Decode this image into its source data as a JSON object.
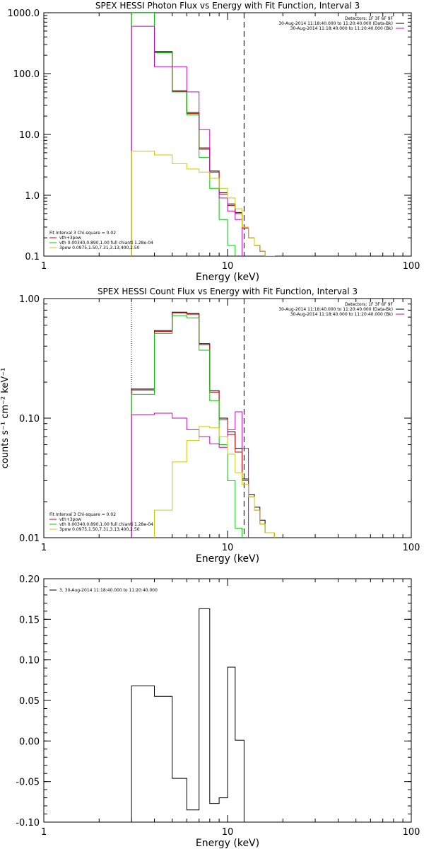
{
  "chart_data": [
    {
      "type": "line",
      "step": true,
      "title": "SPEX HESSI Photon Flux vs Energy with Fit Function, Interval 3",
      "xlabel": "Energy (keV)",
      "ylabel": "",
      "xscale": "log",
      "yscale": "log",
      "xlim": [
        1,
        100
      ],
      "ylim": [
        0.1,
        1000
      ],
      "xticks": [
        1,
        10,
        100
      ],
      "xtick_labels": [
        "1",
        "10",
        "100"
      ],
      "yticks": [
        0.1,
        1,
        10,
        100,
        1000
      ],
      "ytick_labels": [
        "0.1",
        "1.0",
        "10.0",
        "100.0",
        "1000.0"
      ],
      "vlines": [
        {
          "x": 3.0,
          "style": "dotted"
        },
        {
          "x": 12.3,
          "style": "dashed"
        }
      ],
      "legend_right": [
        "Detectors: 1F 3F 6F 9F",
        "30-Aug-2014 11:18:40.000 to 11:20:40.000 (Data-Bk)",
        "30-Aug-2014 11:18:40.000 to 11:20:40.000 (Bk)"
      ],
      "legend_right_colors": [
        "#000000",
        "#000000",
        "#cc00cc"
      ],
      "legend_left": [
        "Fit Interval 3   Chi-square = 0.02",
        "vth+3pow",
        "vth 0.00340,0.890,1.00   full chianti 1.28e-04",
        "3pow 0.0975,1.50,7.31,3.13,400,2.50"
      ],
      "legend_left_colors": [
        "#000000",
        "#cc0000",
        "#00cc00",
        "#cccc00"
      ],
      "edges": [
        3.0,
        4.0,
        5.0,
        6.0,
        7.0,
        8.0,
        9.0,
        10.0,
        11.0,
        12.0,
        13.0,
        14.0,
        15.0,
        16.0,
        18.0
      ],
      "series": [
        {
          "color": "#000000",
          "values": [
            1000,
            230,
            52,
            23,
            6,
            2.5,
            1.1,
            0.72,
            0.52,
            0.3,
            0.2,
            0.15,
            0.12,
            0.1
          ]
        },
        {
          "color": "#cc0000",
          "values": [
            1000,
            225,
            51,
            22,
            5.7,
            2.4,
            1.05,
            0.68,
            0.5,
            0.29,
            0.2,
            0.15,
            0.12,
            0.1
          ]
        },
        {
          "color": "#00cc00",
          "values": [
            1000,
            220,
            50,
            21,
            4.2,
            1.3,
            0.4,
            0.15,
            0.05,
            null,
            null,
            null,
            null,
            null
          ]
        },
        {
          "color": "#cc00cc",
          "values": [
            600,
            130,
            130,
            50,
            12,
            1.9,
            0.9,
            0.55,
            0.4,
            0.01,
            null,
            null,
            null,
            null
          ]
        },
        {
          "color": "#cccc00",
          "values": [
            5.3,
            4.6,
            3.3,
            2.7,
            2.4,
            1.9,
            1.3,
            0.9,
            0.6,
            0.3,
            0.2,
            0.15,
            0.12,
            0.1
          ]
        }
      ]
    },
    {
      "type": "line",
      "step": true,
      "title": "SPEX HESSI Count Flux vs Energy with Fit Function, Interval 3",
      "xlabel": "Energy (keV)",
      "ylabel": "counts s⁻¹ cm⁻² keV⁻¹",
      "xscale": "log",
      "yscale": "log",
      "xlim": [
        1,
        100
      ],
      "ylim": [
        0.01,
        1.0
      ],
      "xticks": [
        1,
        10,
        100
      ],
      "xtick_labels": [
        "1",
        "10",
        "100"
      ],
      "yticks": [
        0.01,
        0.1,
        1.0
      ],
      "ytick_labels": [
        "0.01",
        "0.10",
        "1.00"
      ],
      "vlines": [
        {
          "x": 3.0,
          "style": "dotted"
        },
        {
          "x": 12.3,
          "style": "dashed"
        }
      ],
      "legend_right": [
        "Detectors: 1F 3F 6F 9F",
        "30-Aug-2014 11:18:40.000 to 11:20:40.000 (Data-Bk)",
        "30-Aug-2014 11:18:40.000 to 11:20:40.000 (Bk)"
      ],
      "legend_right_colors": [
        "#000000",
        "#000000",
        "#cc00cc"
      ],
      "legend_left": [
        "Fit Interval 3   Chi-square = 0.02",
        "vth+3pow",
        "vth 0.00340,0.890,1.00   full chianti 1.28e-04",
        "3pow 0.0975,1.50,7.31,3.13,400,2.50"
      ],
      "legend_left_colors": [
        "#000000",
        "#cc0000",
        "#00cc00",
        "#cccc00"
      ],
      "edges": [
        3.0,
        4.0,
        5.0,
        6.0,
        7.0,
        8.0,
        9.0,
        10.0,
        11.0,
        12.0,
        13.0,
        14.0,
        15.0,
        16.0,
        18.0
      ],
      "series": [
        {
          "color": "#000000",
          "values": [
            0.175,
            0.54,
            0.77,
            0.75,
            0.42,
            0.17,
            0.1,
            0.077,
            0.056,
            0.031,
            0.023,
            0.018,
            0.014,
            0.011
          ]
        },
        {
          "color": "#cc0000",
          "values": [
            0.172,
            0.53,
            0.76,
            0.74,
            0.41,
            0.165,
            0.097,
            0.073,
            0.052,
            0.03,
            0.022,
            0.017,
            0.013,
            0.011
          ]
        },
        {
          "color": "#00cc00",
          "values": [
            0.158,
            0.51,
            0.72,
            0.69,
            0.37,
            0.14,
            0.06,
            0.03,
            0.012,
            null,
            null,
            null,
            null,
            null
          ]
        },
        {
          "color": "#cc00cc",
          "values": [
            0.107,
            0.11,
            0.1,
            0.08,
            0.07,
            0.061,
            0.057,
            0.08,
            0.113,
            0.056,
            null,
            null,
            null,
            null
          ]
        },
        {
          "color": "#cccc00",
          "values": [
            0.009,
            0.017,
            0.043,
            0.065,
            0.085,
            0.083,
            0.07,
            0.05,
            0.035,
            0.028,
            0.022,
            0.017,
            0.013,
            0.011
          ]
        }
      ]
    },
    {
      "type": "line",
      "step": true,
      "title": "",
      "xlabel": "Energy (keV)",
      "ylabel": "",
      "xscale": "log",
      "yscale": "linear",
      "xlim": [
        1,
        100
      ],
      "ylim": [
        -0.1,
        0.2
      ],
      "xticks": [
        1,
        10,
        100
      ],
      "xtick_labels": [
        "1",
        "10",
        "100"
      ],
      "yticks": [
        -0.1,
        -0.05,
        0.0,
        0.05,
        0.1,
        0.15,
        0.2
      ],
      "ytick_labels": [
        "-0.10",
        "-0.05",
        "0.00",
        "0.05",
        "0.10",
        "0.15",
        "0.20"
      ],
      "legend_left": [
        "3, 30-Aug-2014 11:18:40.000 to 11:20:40.000"
      ],
      "legend_left_colors": [
        "#000000"
      ],
      "edges": [
        3.0,
        4.0,
        5.0,
        6.0,
        7.0,
        8.0,
        9.0,
        10.0,
        11.0,
        12.3
      ],
      "series": [
        {
          "color": "#000000",
          "values": [
            0.068,
            0.055,
            -0.046,
            -0.085,
            0.163,
            -0.077,
            -0.07,
            0.091,
            0.001
          ]
        }
      ]
    }
  ]
}
